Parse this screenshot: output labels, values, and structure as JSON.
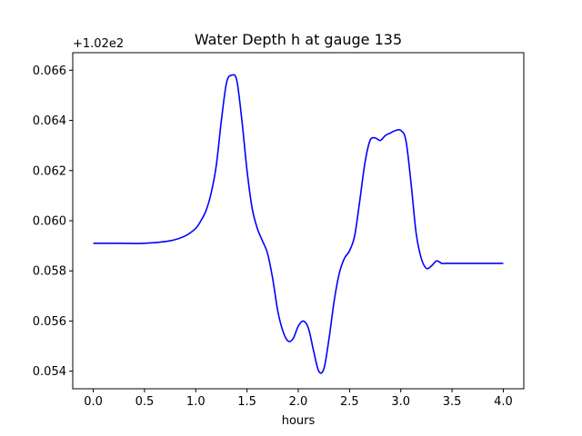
{
  "chart_data": {
    "type": "line",
    "title": "Water Depth h at gauge 135",
    "xlabel": "hours",
    "ylabel": "",
    "y_offset_label": "+1.02e2",
    "y_offset": 102,
    "xlim": [
      -0.2,
      4.2
    ],
    "ylim": [
      0.0533,
      0.0667
    ],
    "xticks": [
      0.0,
      0.5,
      1.0,
      1.5,
      2.0,
      2.5,
      3.0,
      3.5,
      4.0
    ],
    "xtick_labels": [
      "0.0",
      "0.5",
      "1.0",
      "1.5",
      "2.0",
      "2.5",
      "3.0",
      "3.5",
      "4.0"
    ],
    "yticks": [
      0.054,
      0.056,
      0.058,
      0.06,
      0.062,
      0.064,
      0.066
    ],
    "ytick_labels": [
      "0.054",
      "0.056",
      "0.058",
      "0.060",
      "0.062",
      "0.064",
      "0.066"
    ],
    "grid": false,
    "series": [
      {
        "color": "#0000ff",
        "x": [
          0.0,
          0.25,
          0.5,
          0.75,
          0.9,
          1.0,
          1.05,
          1.1,
          1.15,
          1.2,
          1.25,
          1.3,
          1.35,
          1.4,
          1.45,
          1.5,
          1.55,
          1.6,
          1.65,
          1.7,
          1.75,
          1.8,
          1.85,
          1.9,
          1.95,
          2.0,
          2.05,
          2.1,
          2.15,
          2.2,
          2.25,
          2.3,
          2.35,
          2.4,
          2.45,
          2.5,
          2.55,
          2.6,
          2.65,
          2.7,
          2.75,
          2.8,
          2.85,
          2.9,
          2.95,
          3.0,
          3.05,
          3.1,
          3.15,
          3.2,
          3.25,
          3.3,
          3.35,
          3.4,
          3.45,
          3.5,
          3.55,
          3.6,
          3.65,
          3.7,
          3.75,
          3.8,
          3.85,
          3.9,
          3.95,
          4.0
        ],
        "y": [
          0.0591,
          0.0591,
          0.0591,
          0.0592,
          0.0594,
          0.0597,
          0.06,
          0.0604,
          0.0611,
          0.0622,
          0.064,
          0.0655,
          0.0658,
          0.0656,
          0.064,
          0.062,
          0.0605,
          0.0597,
          0.0592,
          0.0587,
          0.0577,
          0.0564,
          0.0556,
          0.0552,
          0.0553,
          0.0558,
          0.056,
          0.0557,
          0.0548,
          0.054,
          0.0541,
          0.0553,
          0.0568,
          0.0579,
          0.0585,
          0.0588,
          0.0594,
          0.0608,
          0.0623,
          0.0632,
          0.0633,
          0.0632,
          0.0634,
          0.0635,
          0.0636,
          0.0636,
          0.0632,
          0.0615,
          0.0595,
          0.0585,
          0.0581,
          0.0582,
          0.0584,
          0.0583,
          0.0583,
          0.0583,
          0.0583,
          0.0583,
          0.0583,
          0.0583,
          0.0583,
          0.0583,
          0.0583,
          0.0583,
          0.0583,
          0.0583
        ]
      }
    ]
  }
}
